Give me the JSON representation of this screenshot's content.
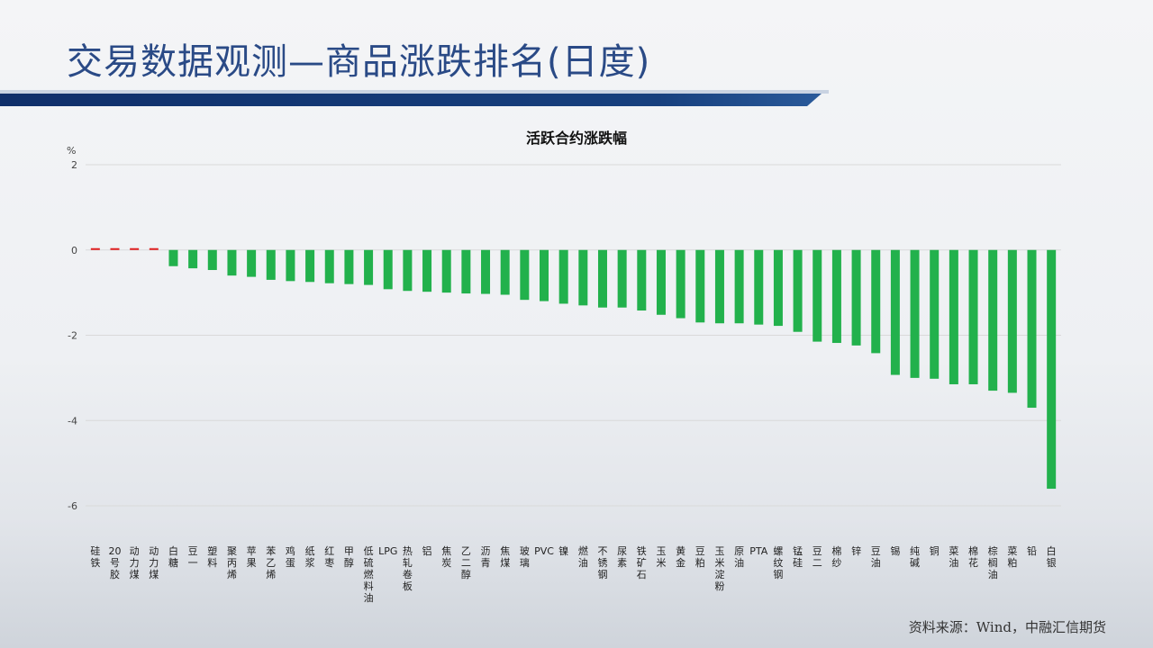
{
  "slide": {
    "title": "交易数据观测—商品涨跌排名(日度)",
    "source": "资料来源：Wind，中融汇信期货"
  },
  "colors": {
    "positive": "#e02020",
    "negative": "#22b14c",
    "title": "#2a4a86",
    "band": "#17407e"
  },
  "chart_data": {
    "type": "bar",
    "title": "活跃合约涨跌幅",
    "ylabel": "%",
    "xlabel": "",
    "ylim": [
      -6,
      2
    ],
    "yticks": [
      2,
      0,
      -2,
      -4,
      -6
    ],
    "grid": true,
    "categories": [
      "硅铁",
      "20号胶",
      "动力煤",
      "动力煤",
      "白糖",
      "豆一",
      "塑料",
      "聚丙烯",
      "苹果",
      "苯乙烯",
      "鸡蛋",
      "纸浆",
      "红枣",
      "甲醇",
      "低硫燃料油",
      "LPG",
      "热轧卷板",
      "铝",
      "焦炭",
      "乙二醇",
      "沥青",
      "焦煤",
      "玻璃",
      "PVC",
      "镍",
      "燃油",
      "不锈钢",
      "尿素",
      "铁矿石",
      "玉米",
      "黄金",
      "豆粕",
      "玉米淀粉",
      "原油",
      "PTA",
      "螺纹钢",
      "锰硅",
      "豆二",
      "棉纱",
      "锌",
      "豆油",
      "锡",
      "纯碱",
      "铜",
      "菜油",
      "棉花",
      "棕榈油",
      "菜粕",
      "铅",
      "白银"
    ],
    "values": [
      0.03,
      0.02,
      0.0,
      0.0,
      -0.38,
      -0.43,
      -0.47,
      -0.6,
      -0.63,
      -0.7,
      -0.73,
      -0.75,
      -0.78,
      -0.8,
      -0.82,
      -0.92,
      -0.96,
      -0.98,
      -1.0,
      -1.02,
      -1.03,
      -1.05,
      -1.17,
      -1.2,
      -1.26,
      -1.3,
      -1.35,
      -1.35,
      -1.42,
      -1.52,
      -1.6,
      -1.7,
      -1.72,
      -1.72,
      -1.75,
      -1.78,
      -1.92,
      -2.15,
      -2.18,
      -2.24,
      -2.42,
      -2.93,
      -3.0,
      -3.02,
      -3.15,
      -3.15,
      -3.3,
      -3.35,
      -3.7,
      -5.6
    ]
  }
}
